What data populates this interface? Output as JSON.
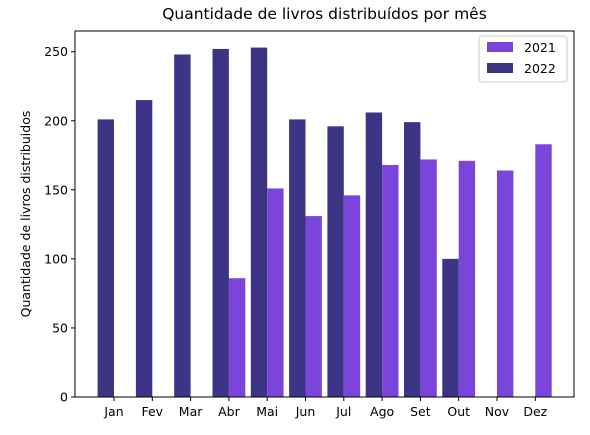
{
  "chart_data": {
    "type": "bar",
    "title": "Quantidade de livros distribuídos por mês",
    "xlabel": "",
    "ylabel": "Quantidade de livros distribuidos",
    "categories": [
      "Jan",
      "Fev",
      "Mar",
      "Abr",
      "Mai",
      "Jun",
      "Jul",
      "Ago",
      "Set",
      "Out",
      "Nov",
      "Dez"
    ],
    "series": [
      {
        "name": "2021",
        "color": "#7b45dc",
        "values": [
          null,
          null,
          null,
          86,
          151,
          131,
          146,
          168,
          172,
          171,
          164,
          183
        ]
      },
      {
        "name": "2022",
        "color": "#3c3585",
        "values": [
          201,
          215,
          248,
          252,
          253,
          201,
          196,
          206,
          199,
          100,
          null,
          null
        ]
      }
    ],
    "ylim": [
      0,
      265
    ],
    "yticks": [
      0,
      50,
      100,
      150,
      200,
      250
    ],
    "grid": false,
    "legend_position": "top-right"
  }
}
